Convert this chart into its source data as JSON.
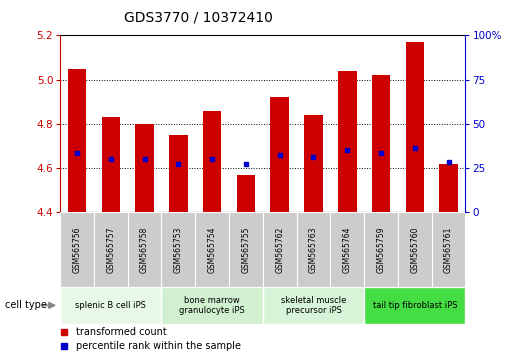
{
  "title": "GDS3770 / 10372410",
  "samples": [
    "GSM565756",
    "GSM565757",
    "GSM565758",
    "GSM565753",
    "GSM565754",
    "GSM565755",
    "GSM565762",
    "GSM565763",
    "GSM565764",
    "GSM565759",
    "GSM565760",
    "GSM565761"
  ],
  "bar_values": [
    5.05,
    4.83,
    4.8,
    4.75,
    4.86,
    4.57,
    4.92,
    4.84,
    5.04,
    5.02,
    5.17,
    4.62
  ],
  "percentile_values": [
    4.67,
    4.64,
    4.64,
    4.62,
    4.64,
    4.62,
    4.66,
    4.65,
    4.68,
    4.67,
    4.69,
    4.63
  ],
  "ylim_left": [
    4.4,
    5.2
  ],
  "ylim_right": [
    0,
    100
  ],
  "yticks_left": [
    4.4,
    4.6,
    4.8,
    5.0,
    5.2
  ],
  "yticks_right": [
    0,
    25,
    50,
    75,
    100
  ],
  "bar_color": "#cc0000",
  "percentile_color": "#0000cc",
  "bar_bottom": 4.4,
  "cell_types": [
    {
      "label": "splenic B cell iPS",
      "start": 0,
      "end": 3,
      "color": "#e8f8e8"
    },
    {
      "label": "bone marrow\ngranulocyte iPS",
      "start": 3,
      "end": 6,
      "color": "#d0f0d0"
    },
    {
      "label": "skeletal muscle\nprecursor iPS",
      "start": 6,
      "end": 9,
      "color": "#d8f4d8"
    },
    {
      "label": "tail tip fibroblast iPS",
      "start": 9,
      "end": 12,
      "color": "#44dd44"
    }
  ],
  "cell_type_label": "cell type",
  "legend_red": "transformed count",
  "legend_blue": "percentile rank within the sample",
  "bg_color": "#ffffff",
  "plot_bg": "#ffffff",
  "left_axis_color": "#cc0000",
  "right_axis_color": "#0000cc",
  "title_fontsize": 10,
  "bar_width": 0.55,
  "sample_box_color": "#cccccc",
  "border_color": "#888888"
}
